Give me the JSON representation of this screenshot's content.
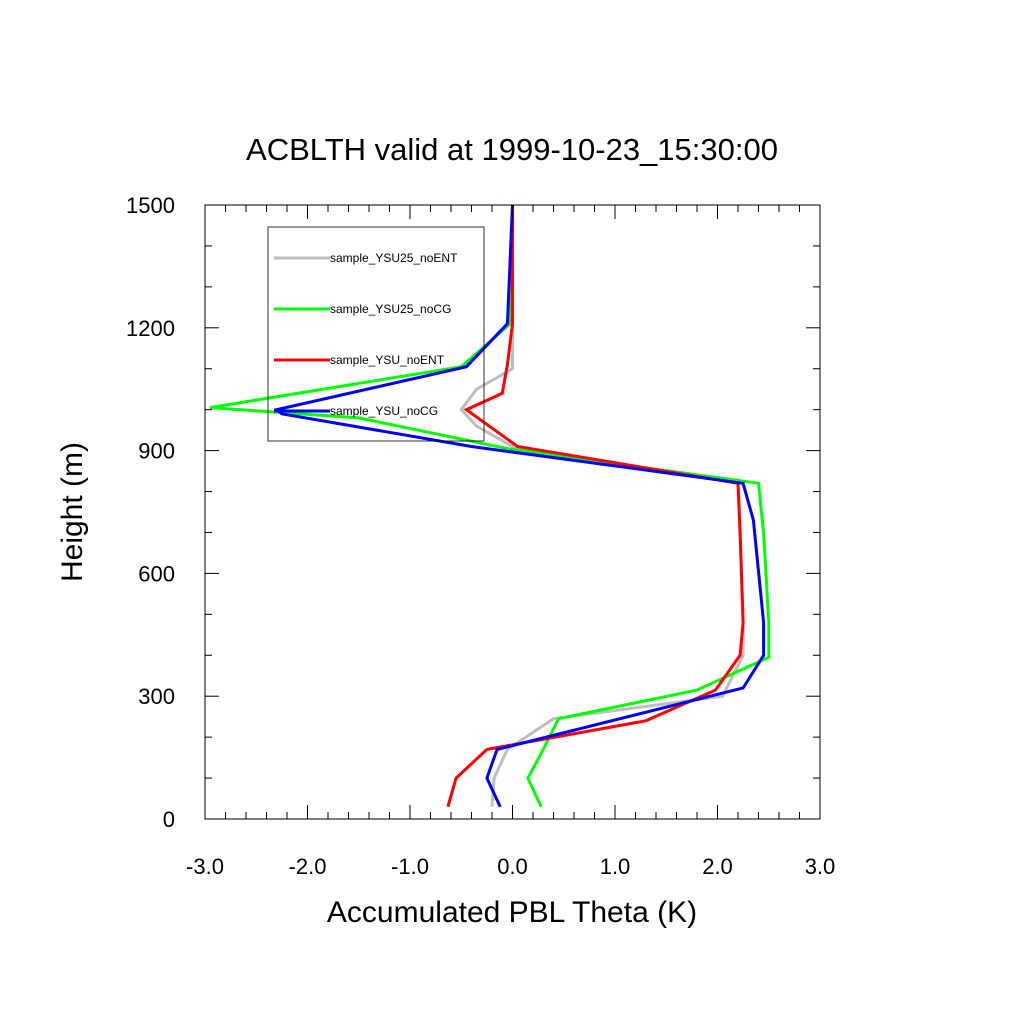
{
  "chart_data": {
    "type": "line",
    "title": "ACBLTH valid at 1999-10-23_15:30:00",
    "xlabel": "Accumulated PBL Theta (K)",
    "ylabel": "Height (m)",
    "xlim": [
      -3.0,
      3.0
    ],
    "ylim": [
      0,
      1500
    ],
    "xticks": [
      "-3.0",
      "-2.0",
      "-1.0",
      "0.0",
      "1.0",
      "2.0",
      "3.0"
    ],
    "yticks": [
      "0",
      "300",
      "600",
      "900",
      "1200",
      "1500"
    ],
    "grid": false,
    "legend_position": "top-left",
    "series": [
      {
        "name": "sample_YSU25_noENT",
        "color": "#bebebe",
        "points": [
          [
            -0.2,
            30
          ],
          [
            -0.18,
            100
          ],
          [
            -0.05,
            170
          ],
          [
            0.4,
            245
          ],
          [
            2.05,
            300
          ],
          [
            2.25,
            400
          ],
          [
            2.25,
            480
          ],
          [
            2.22,
            700
          ],
          [
            2.2,
            820
          ],
          [
            0.0,
            910
          ],
          [
            -0.35,
            960
          ],
          [
            -0.5,
            1000
          ],
          [
            -0.35,
            1050
          ],
          [
            0.0,
            1100
          ],
          [
            0.0,
            1200
          ],
          [
            0.0,
            1500
          ]
        ]
      },
      {
        "name": "sample_YSU25_noCG",
        "color": "#00ff00",
        "points": [
          [
            0.28,
            30
          ],
          [
            0.15,
            100
          ],
          [
            0.3,
            170
          ],
          [
            0.45,
            245
          ],
          [
            1.8,
            315
          ],
          [
            2.5,
            395
          ],
          [
            2.5,
            480
          ],
          [
            2.45,
            700
          ],
          [
            2.4,
            820
          ],
          [
            -0.05,
            905
          ],
          [
            -1.5,
            980
          ],
          [
            -2.95,
            1005
          ],
          [
            -0.5,
            1105
          ],
          [
            -0.02,
            1210
          ],
          [
            0.0,
            1500
          ]
        ]
      },
      {
        "name": "sample_YSU_noENT",
        "color": "#ff0000",
        "points": [
          [
            -0.63,
            30
          ],
          [
            -0.55,
            100
          ],
          [
            -0.25,
            170
          ],
          [
            1.3,
            240
          ],
          [
            1.98,
            315
          ],
          [
            2.22,
            400
          ],
          [
            2.25,
            480
          ],
          [
            2.22,
            700
          ],
          [
            2.2,
            820
          ],
          [
            0.05,
            910
          ],
          [
            -0.45,
            1000
          ],
          [
            -0.1,
            1040
          ],
          [
            -0.05,
            1110
          ],
          [
            0.0,
            1210
          ],
          [
            0.0,
            1500
          ]
        ]
      },
      {
        "name": "sample_YSU_noCG",
        "color": "#0000ff",
        "points": [
          [
            -0.12,
            30
          ],
          [
            -0.25,
            100
          ],
          [
            -0.15,
            170
          ],
          [
            2.25,
            320
          ],
          [
            2.45,
            400
          ],
          [
            2.45,
            480
          ],
          [
            2.35,
            730
          ],
          [
            2.25,
            820
          ],
          [
            -0.4,
            910
          ],
          [
            -2.25,
            990
          ],
          [
            -2.3,
            1000
          ],
          [
            -0.45,
            1105
          ],
          [
            -0.05,
            1210
          ],
          [
            0.0,
            1500
          ]
        ]
      }
    ]
  }
}
